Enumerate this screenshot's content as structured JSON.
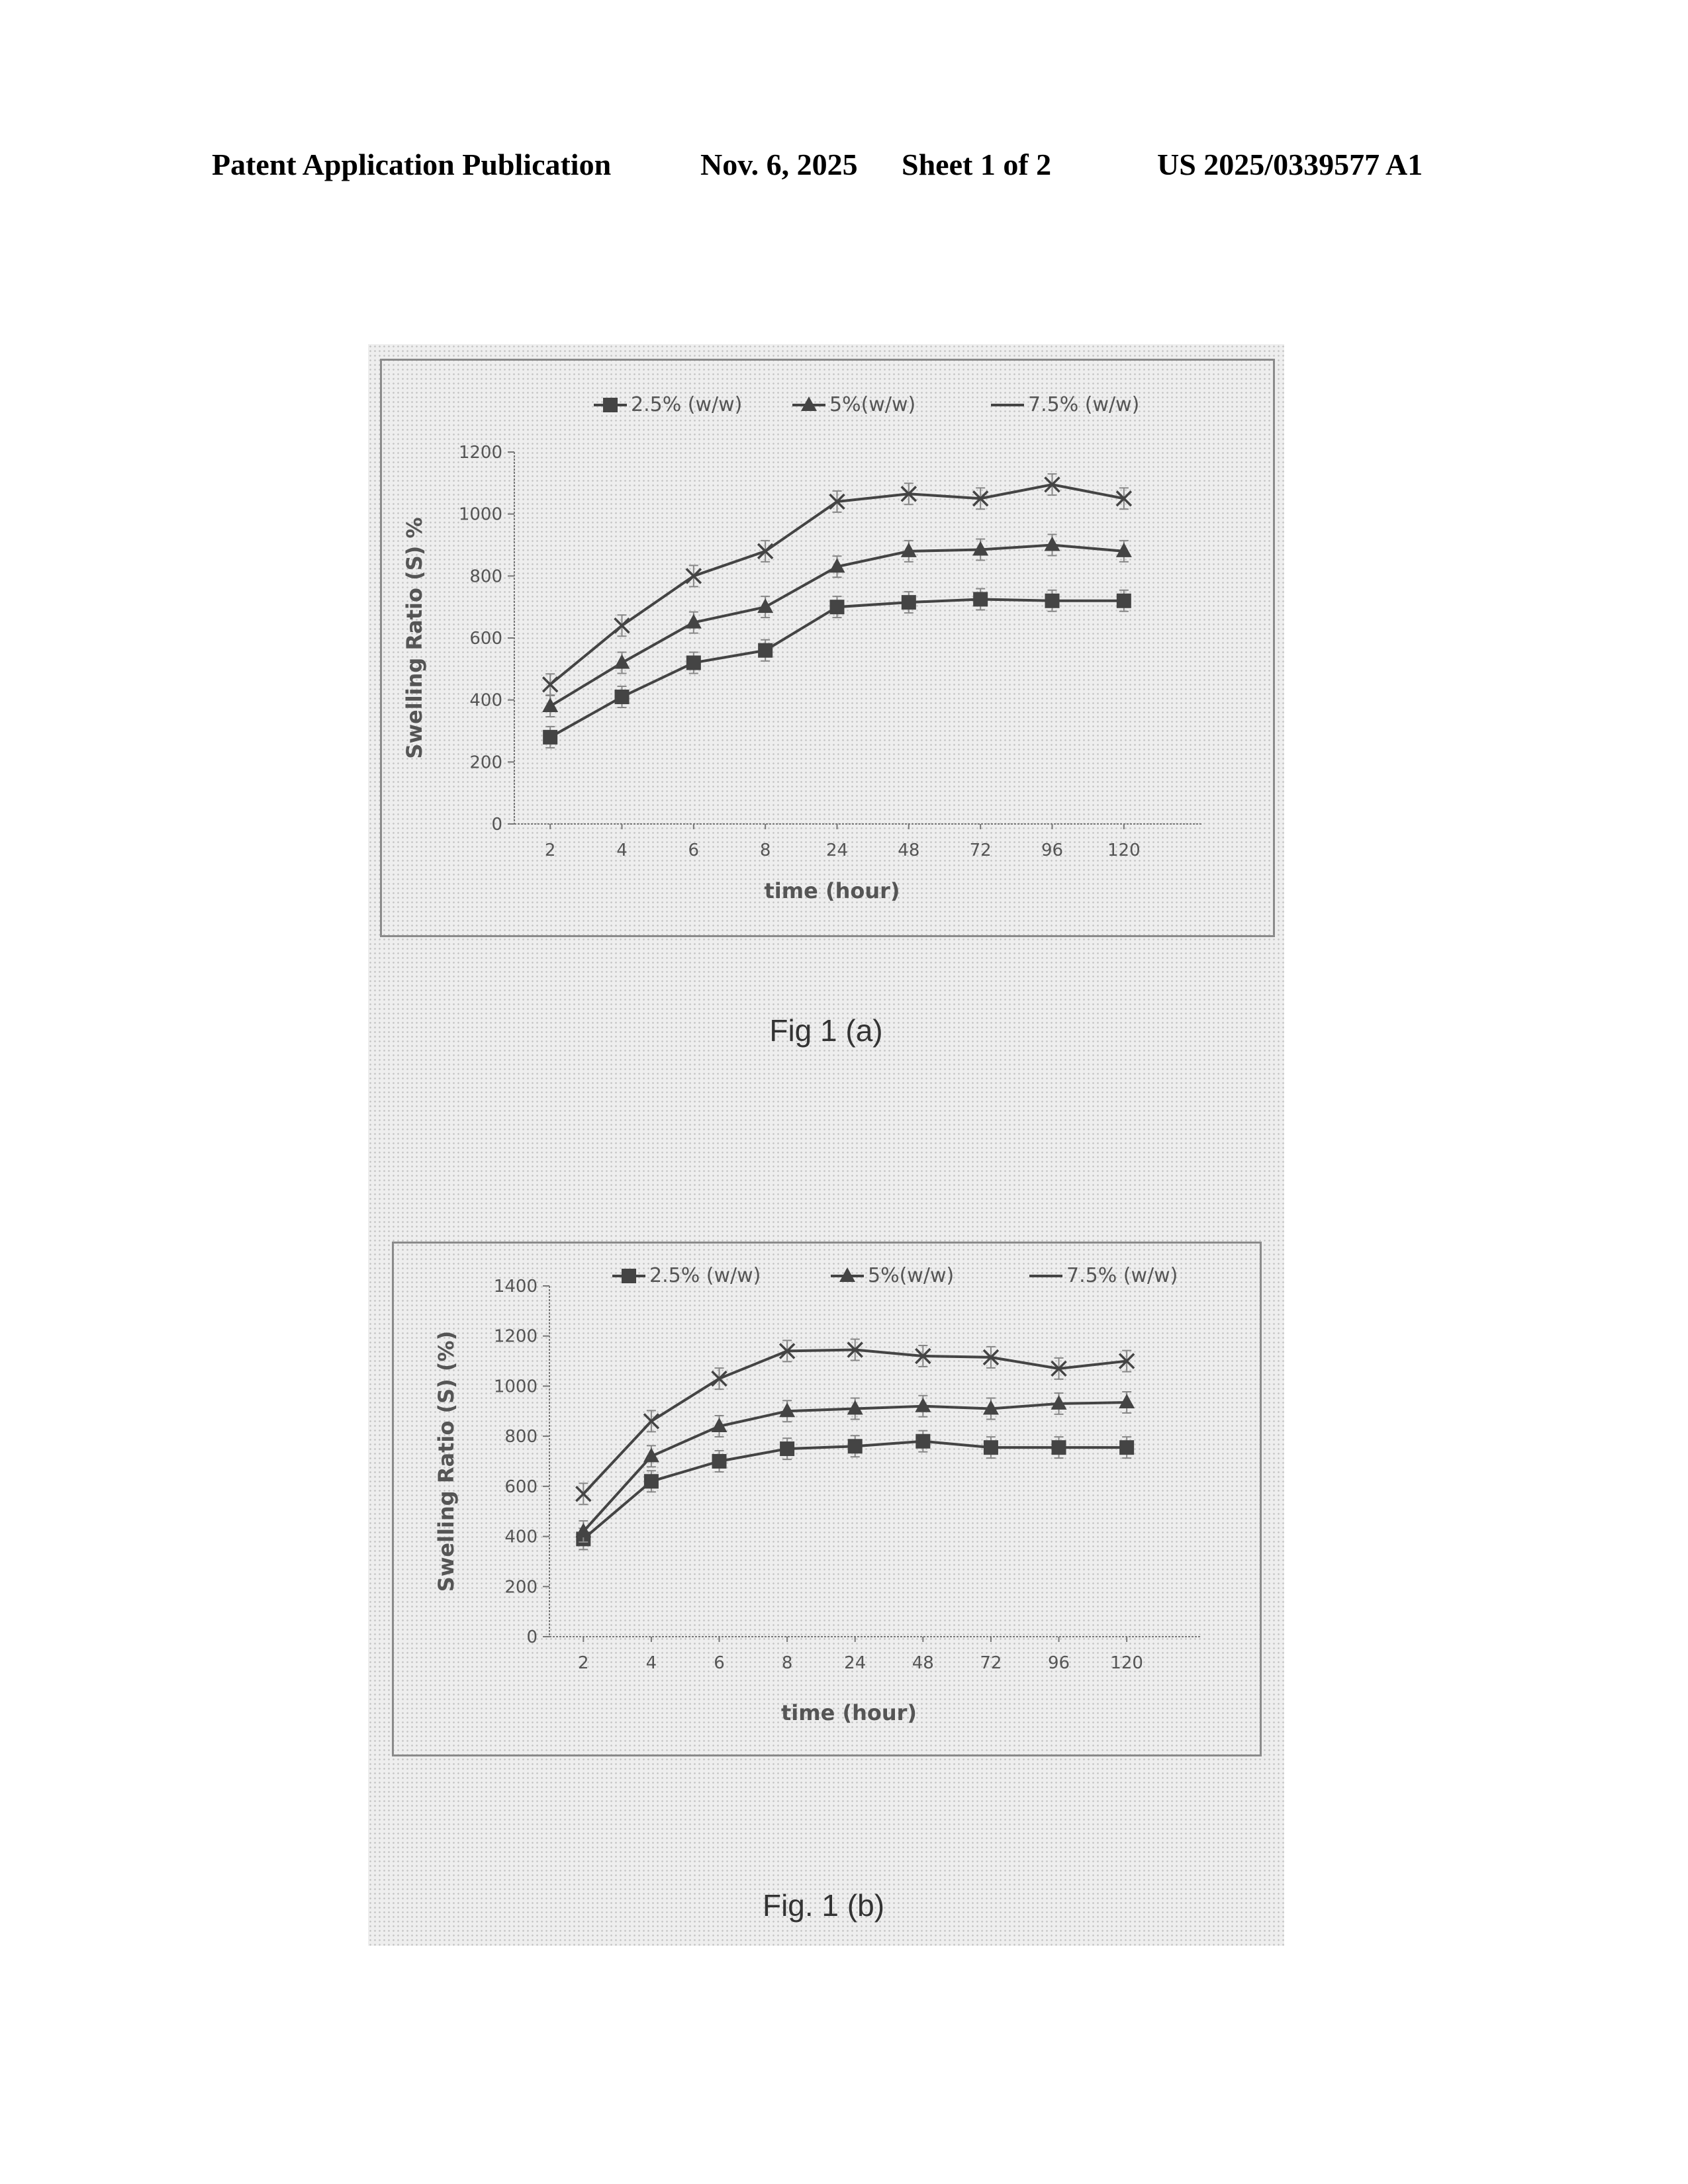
{
  "header": {
    "left": "Patent Application Publication",
    "date": "Nov. 6, 2025",
    "sheet": "Sheet 1 of 2",
    "number": "US 2025/0339577 A1"
  },
  "colors": {
    "line": "#444444",
    "axis": "#777777",
    "text": "#555555"
  },
  "chart_data": [
    {
      "type": "line",
      "caption": "Fig 1 (a)",
      "xlabel": "time (hour)",
      "ylabel": "Swelling Ratio (S) %",
      "categories": [
        "2",
        "4",
        "6",
        "8",
        "24",
        "48",
        "72",
        "96",
        "120"
      ],
      "ylim": [
        0,
        1200
      ],
      "yticks": [
        0,
        200,
        400,
        600,
        800,
        1000,
        1200
      ],
      "legend": "top",
      "grid": false,
      "series": [
        {
          "name": "2.5% (w/w)",
          "marker": "square",
          "values": [
            280,
            410,
            520,
            560,
            700,
            715,
            725,
            720,
            720
          ]
        },
        {
          "name": "5%(w/w)",
          "marker": "triangle",
          "values": [
            380,
            520,
            650,
            700,
            830,
            880,
            885,
            900,
            880
          ]
        },
        {
          "name": "7.5% (w/w)",
          "marker": "x",
          "values": [
            450,
            640,
            800,
            880,
            1040,
            1065,
            1050,
            1095,
            1050
          ]
        }
      ]
    },
    {
      "type": "line",
      "caption": "Fig. 1 (b)",
      "xlabel": "time (hour)",
      "ylabel": "Swelling Ratio (S) (%)",
      "categories": [
        "2",
        "4",
        "6",
        "8",
        "24",
        "48",
        "72",
        "96",
        "120"
      ],
      "ylim": [
        0,
        1400
      ],
      "yticks": [
        0,
        200,
        400,
        600,
        800,
        1000,
        1200,
        1400
      ],
      "legend": "top",
      "grid": false,
      "series": [
        {
          "name": "2.5% (w/w)",
          "marker": "square",
          "values": [
            390,
            620,
            700,
            750,
            760,
            780,
            755,
            755,
            755
          ]
        },
        {
          "name": "5%(w/w)",
          "marker": "triangle",
          "values": [
            420,
            720,
            840,
            900,
            910,
            920,
            910,
            930,
            935
          ]
        },
        {
          "name": "7.5% (w/w)",
          "marker": "x",
          "values": [
            570,
            860,
            1030,
            1140,
            1145,
            1120,
            1115,
            1070,
            1100
          ]
        }
      ]
    }
  ]
}
